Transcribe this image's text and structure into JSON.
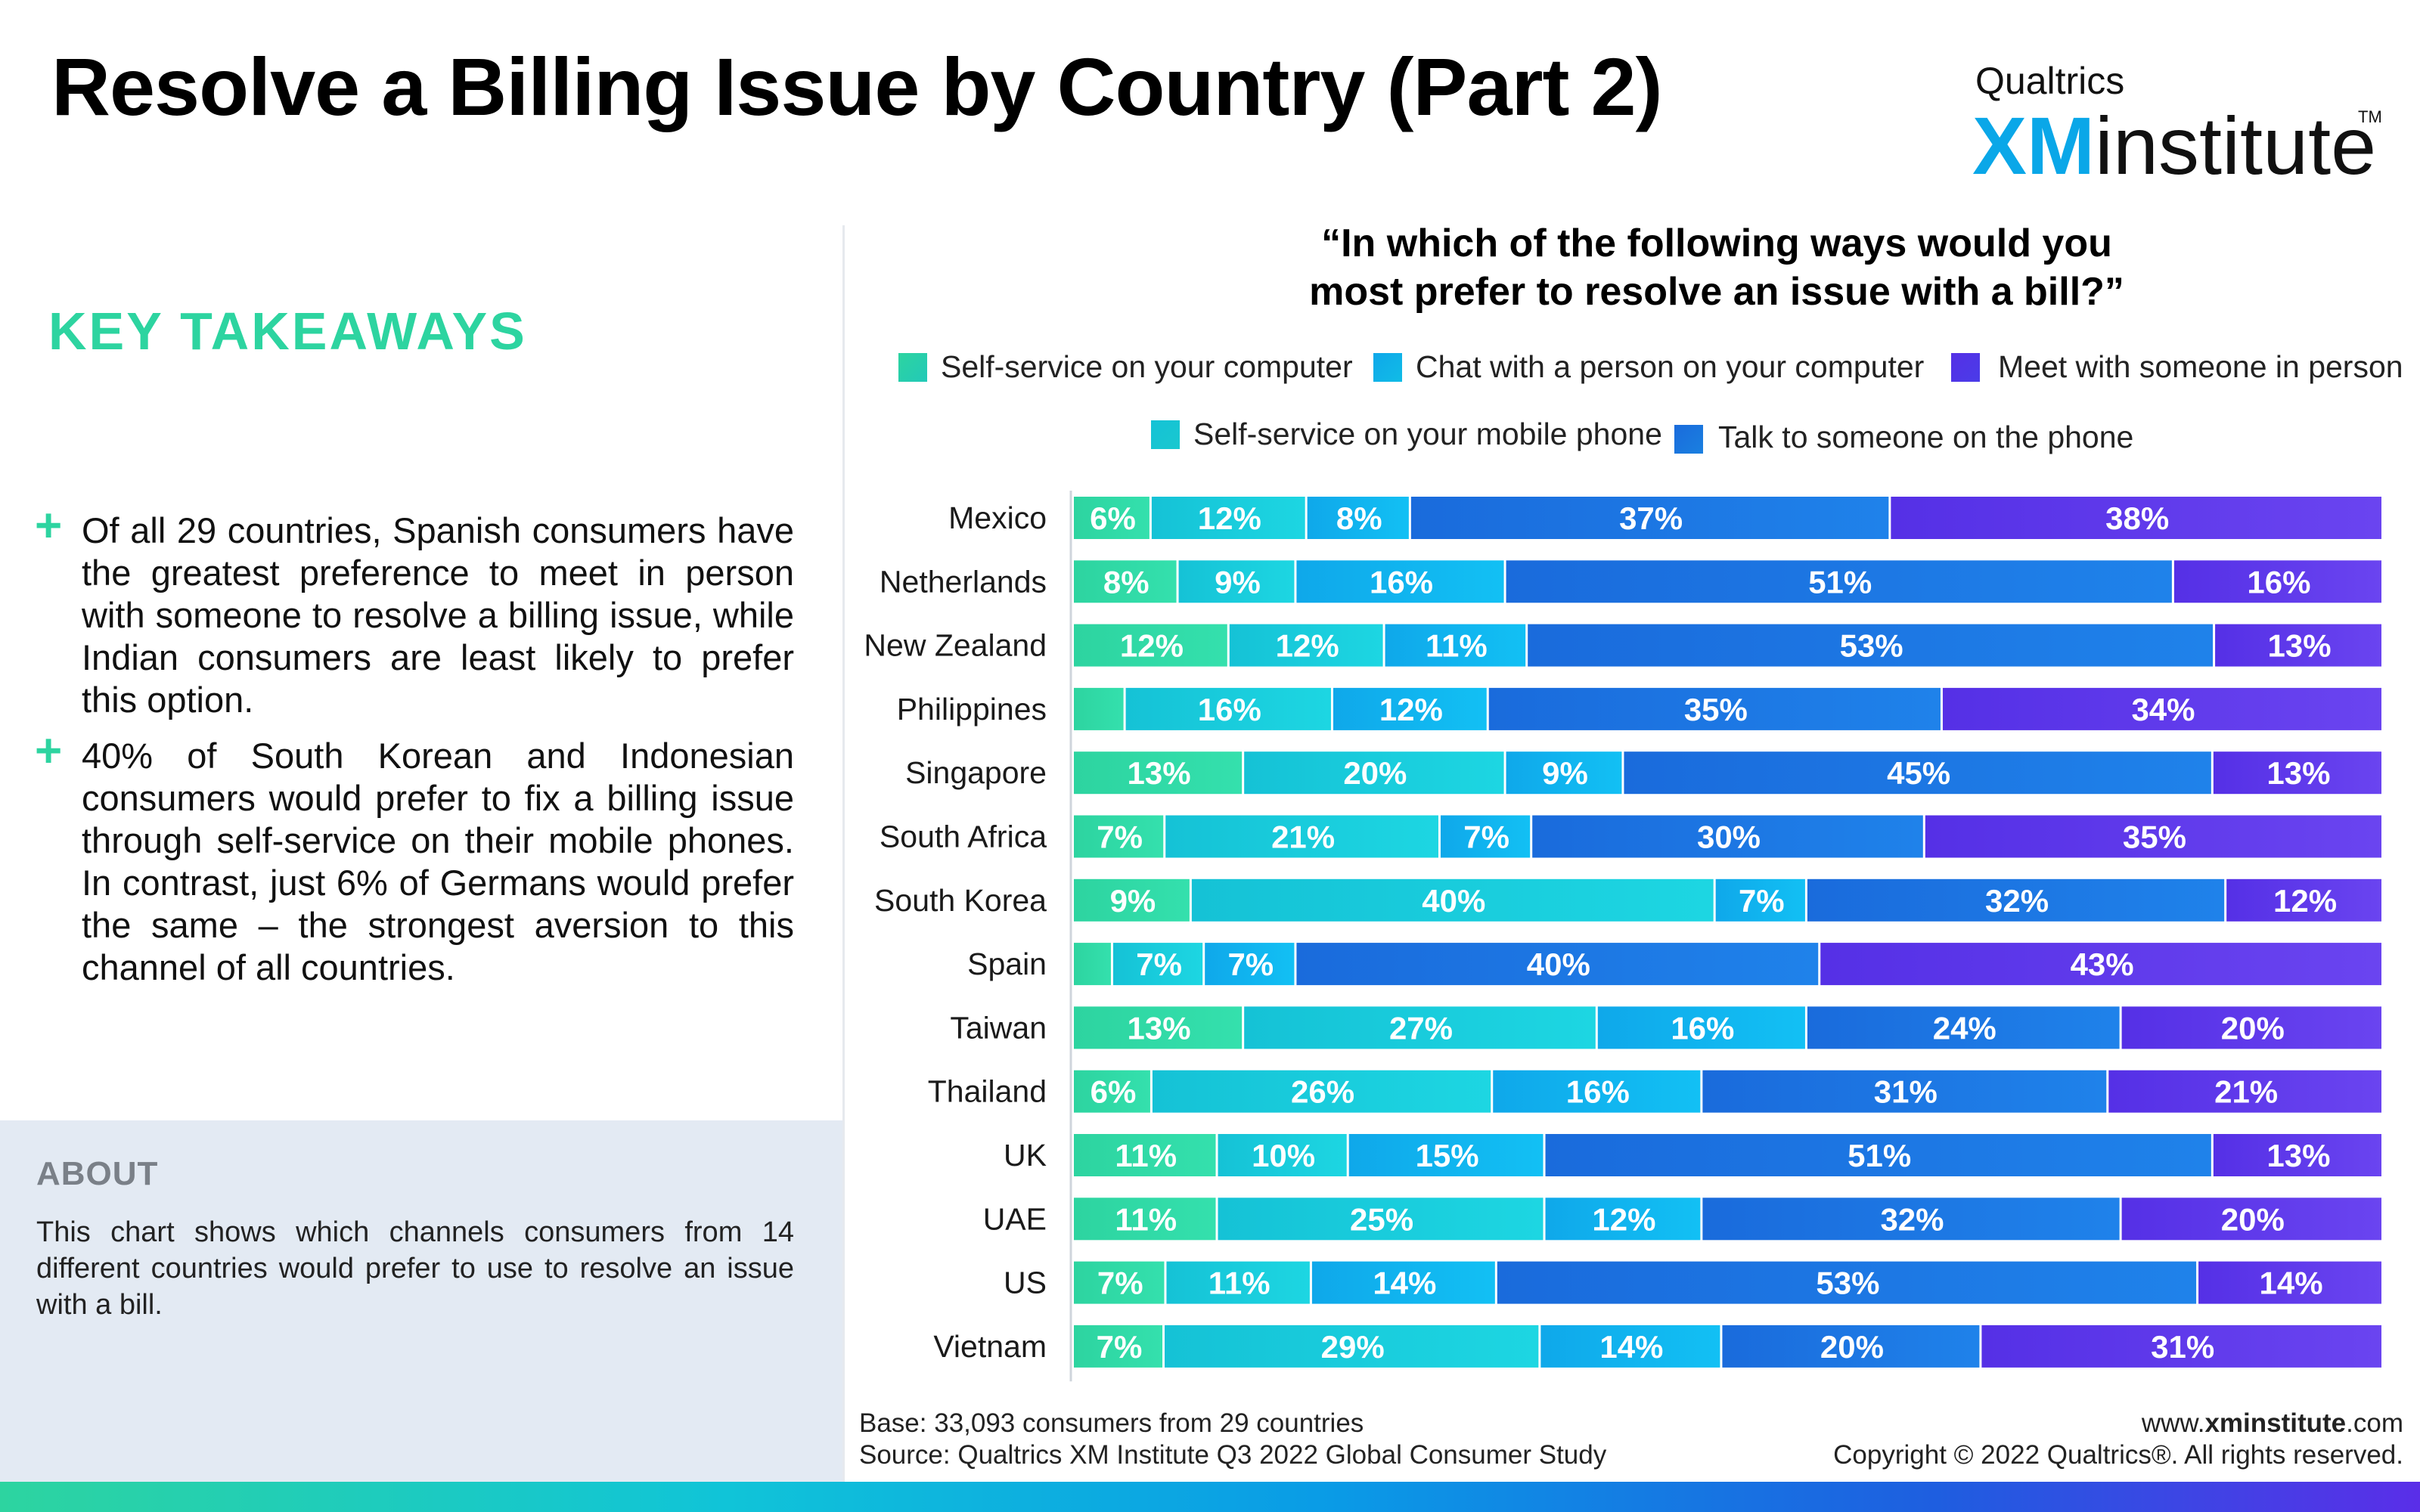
{
  "header": {
    "title": "Resolve a Billing Issue by Country (Part 2)"
  },
  "logo": {
    "brand": "Qualtrics",
    "xm": "XM",
    "institute": "institute",
    "tm": "TM"
  },
  "takeaways": {
    "heading": "KEY TAKEAWAYS",
    "plus": "+",
    "items": [
      "Of all 29 countries, Spanish consumers have the greatest preference to meet in person with someone to resolve a billing issue, while Indian consumers are least likely to prefer this option.",
      "40% of South Korean and Indonesian consumers would prefer to fix a billing issue through self-service on their mobile phones. In contrast, just 6% of Germans would prefer the same – the strongest aversion to this channel of all countries."
    ]
  },
  "about": {
    "heading": "ABOUT",
    "text": "This chart shows which channels consumers from 14 different countries would prefer to use to resolve an issue with a bill."
  },
  "question": {
    "line1": "“In which of the following ways would you",
    "line2": "most prefer to resolve an issue with a bill?”"
  },
  "footer": {
    "base": "Base: 33,093 consumers from 29 countries",
    "source": "Source: Qualtrics XM Institute Q3 2022 Global Consumer Study",
    "site_prefix": "www.",
    "site_bold": "xminstitute",
    "site_suffix": ".com",
    "copyright": "Copyright © 2022 Qualtrics®. All rights reserved."
  },
  "chart_data": {
    "type": "bar",
    "orientation": "horizontal",
    "stacked": true,
    "percent": true,
    "legend": "top",
    "categories": [
      "Mexico",
      "Netherlands",
      "New Zealand",
      "Philippines",
      "Singapore",
      "South Africa",
      "South Korea",
      "Spain",
      "Taiwan",
      "Thailand",
      "UK",
      "UAE",
      "US",
      "Vietnam"
    ],
    "series": [
      {
        "name": "Self-service on your computer",
        "color": "#2dd4a0",
        "values": [
          6,
          8,
          12,
          4,
          13,
          7,
          9,
          3,
          13,
          6,
          11,
          11,
          7,
          7
        ],
        "labels": [
          "6%",
          "8%",
          "12%",
          "",
          "13%",
          "7%",
          "9%",
          "",
          "13%",
          "6%",
          "11%",
          "11%",
          "7%",
          "7%"
        ]
      },
      {
        "name": "Self-service on your mobile phone",
        "color": "#15c2d6",
        "values": [
          12,
          9,
          12,
          16,
          20,
          21,
          40,
          7,
          27,
          26,
          10,
          25,
          11,
          29
        ],
        "labels": [
          "12%",
          "9%",
          "12%",
          "16%",
          "20%",
          "21%",
          "40%",
          "7%",
          "27%",
          "26%",
          "10%",
          "25%",
          "11%",
          "29%"
        ]
      },
      {
        "name": "Chat with a person on your computer",
        "color": "#0fa8ea",
        "values": [
          8,
          16,
          11,
          12,
          9,
          7,
          7,
          7,
          16,
          16,
          15,
          12,
          14,
          14
        ],
        "labels": [
          "8%",
          "16%",
          "11%",
          "12%",
          "9%",
          "7%",
          "7%",
          "7%",
          "16%",
          "16%",
          "15%",
          "12%",
          "14%",
          "14%"
        ]
      },
      {
        "name": "Talk to someone on the phone",
        "color": "#1a6bdc",
        "values": [
          37,
          51,
          53,
          35,
          45,
          30,
          32,
          40,
          24,
          31,
          51,
          32,
          53,
          20
        ],
        "labels": [
          "37%",
          "51%",
          "53%",
          "35%",
          "45%",
          "30%",
          "32%",
          "40%",
          "24%",
          "31%",
          "51%",
          "32%",
          "53%",
          "20%"
        ]
      },
      {
        "name": "Meet with someone in person",
        "color": "#5530e6",
        "values": [
          38,
          16,
          13,
          34,
          13,
          35,
          12,
          43,
          20,
          21,
          13,
          20,
          14,
          31
        ],
        "labels": [
          "38%",
          "16%",
          "13%",
          "34%",
          "13%",
          "35%",
          "12%",
          "43%",
          "20%",
          "21%",
          "13%",
          "20%",
          "14%",
          "31%"
        ]
      }
    ]
  }
}
